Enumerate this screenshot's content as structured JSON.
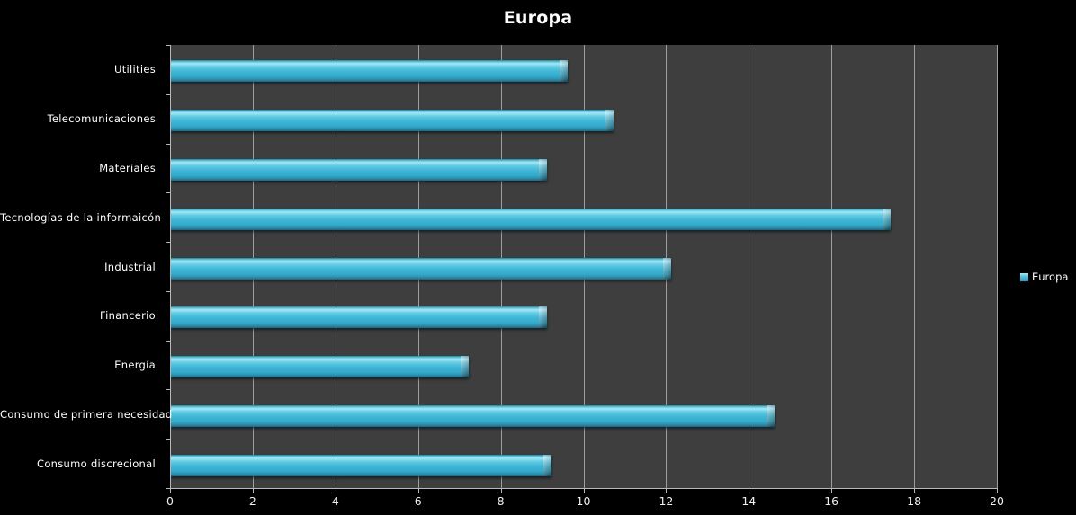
{
  "title": "Europa",
  "legend": {
    "label": "Europa",
    "marker_color": "#3db7d8",
    "position": "right"
  },
  "colors": {
    "page_background": "#000000",
    "plot_background": "#3e3e3e",
    "gridline": "#9d9d9d",
    "axis": "#b8b8b8",
    "bar_main": "#3db7d8",
    "bar_highlight": "#a8e7f3",
    "bar_shadow": "#1a6a84",
    "text": "#ffffff"
  },
  "chart_data": {
    "type": "bar",
    "orientation": "horizontal",
    "title": "Europa",
    "categories": [
      "Utilities",
      "Telecomunicaciones",
      "Materiales",
      "Tecnologías de la informaicón",
      "Industrial",
      "Financerio",
      "Energía",
      "Consumo de primera necesidad",
      "Consumo discrecional"
    ],
    "series": [
      {
        "name": "Europa",
        "values": [
          9.6,
          10.7,
          9.1,
          17.4,
          12.1,
          9.1,
          7.2,
          14.6,
          9.2
        ]
      }
    ],
    "xlabel": "",
    "ylabel": "",
    "xlim": [
      0,
      20
    ],
    "x_ticks": [
      0,
      2,
      4,
      6,
      8,
      10,
      12,
      14,
      16,
      18,
      20
    ],
    "grid": "vertical",
    "legend_position": "right"
  }
}
